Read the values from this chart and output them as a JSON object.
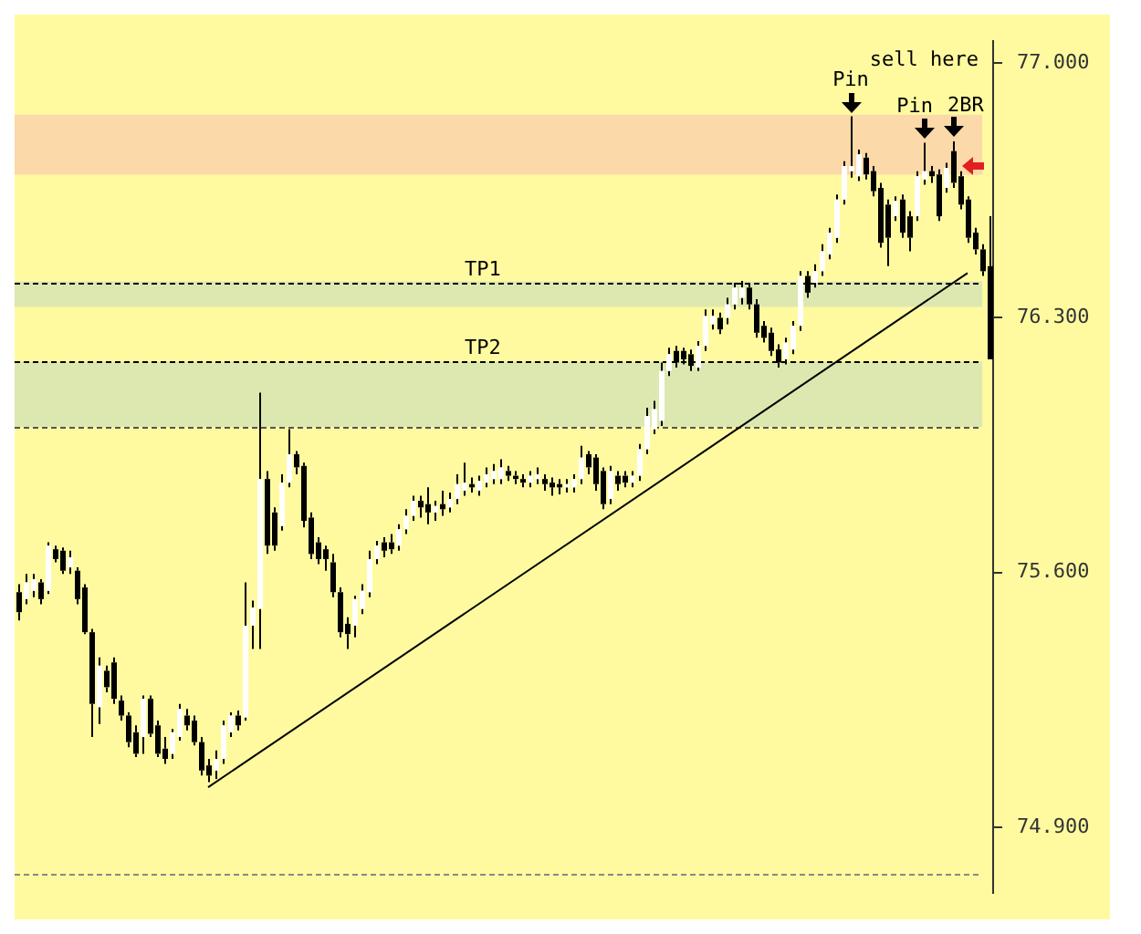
{
  "chart_data": {
    "type": "candlestick",
    "categories": [
      null,
      null,
      null,
      null,
      null,
      null,
      null,
      null,
      null,
      null,
      null,
      null,
      null,
      null,
      null,
      null,
      null,
      null,
      null,
      null,
      null,
      null,
      null,
      null,
      null,
      null,
      null,
      null,
      null,
      null,
      null,
      null,
      null,
      null,
      null,
      null,
      null,
      null,
      null,
      null,
      null,
      null,
      null,
      null,
      null,
      null,
      null,
      null,
      null,
      null,
      null,
      null,
      null,
      null,
      null,
      null,
      null,
      null,
      null,
      null,
      null,
      null,
      null,
      null,
      null,
      null,
      null,
      null,
      null,
      null,
      null,
      null,
      null,
      null,
      null,
      null,
      null,
      null,
      null,
      null,
      null,
      null,
      null,
      null,
      null,
      null,
      null,
      null,
      null,
      null,
      null,
      null,
      null,
      null,
      null,
      null,
      null,
      null,
      null,
      null,
      null,
      null,
      null,
      null,
      null,
      null,
      null,
      null,
      null,
      null,
      null,
      null,
      null,
      null,
      null,
      null,
      null,
      null,
      null,
      null,
      null,
      null,
      null,
      null,
      null,
      null,
      null,
      null,
      null,
      null,
      null,
      null,
      null,
      null
    ],
    "ohlc": [
      [
        75.546,
        75.568,
        75.468,
        75.491
      ],
      [
        75.527,
        75.596,
        75.513,
        75.573
      ],
      [
        75.55,
        75.596,
        75.532,
        75.582
      ],
      [
        75.573,
        75.582,
        75.513,
        75.527
      ],
      [
        75.55,
        75.683,
        75.541,
        75.674
      ],
      [
        75.664,
        75.674,
        75.628,
        75.637
      ],
      [
        75.66,
        75.669,
        75.596,
        75.605
      ],
      [
        75.614,
        75.66,
        75.596,
        75.642
      ],
      [
        75.605,
        75.614,
        75.513,
        75.527
      ],
      [
        75.559,
        75.568,
        75.431,
        75.436
      ],
      [
        75.436,
        75.445,
        75.148,
        75.239
      ],
      [
        75.23,
        75.367,
        75.184,
        75.344
      ],
      [
        75.33,
        75.344,
        75.271,
        75.285
      ],
      [
        75.353,
        75.367,
        75.239,
        75.253
      ],
      [
        75.248,
        75.262,
        75.193,
        75.207
      ],
      [
        75.207,
        75.216,
        75.12,
        75.134
      ],
      [
        75.161,
        75.18,
        75.093,
        75.102
      ],
      [
        75.148,
        75.262,
        75.102,
        75.253
      ],
      [
        75.253,
        75.262,
        75.148,
        75.157
      ],
      [
        75.18,
        75.193,
        75.093,
        75.102
      ],
      [
        75.116,
        75.148,
        75.074,
        75.088
      ],
      [
        75.102,
        75.17,
        75.088,
        75.161
      ],
      [
        75.148,
        75.239,
        75.138,
        75.225
      ],
      [
        75.207,
        75.225,
        75.166,
        75.18
      ],
      [
        75.193,
        75.207,
        75.125,
        75.134
      ],
      [
        75.134,
        75.148,
        75.042,
        75.056
      ],
      [
        75.07,
        75.088,
        75.024,
        75.042
      ],
      [
        75.056,
        75.111,
        75.033,
        75.088
      ],
      [
        75.088,
        75.193,
        75.074,
        75.18
      ],
      [
        75.161,
        75.216,
        75.148,
        75.207
      ],
      [
        75.207,
        75.221,
        75.166,
        75.18
      ],
      [
        75.202,
        75.573,
        75.193,
        75.454
      ],
      [
        75.454,
        75.523,
        75.39,
        75.504
      ],
      [
        75.5,
        76.094,
        75.39,
        75.857
      ],
      [
        75.857,
        75.879,
        75.651,
        75.674
      ],
      [
        75.765,
        75.779,
        75.66,
        75.674
      ],
      [
        75.728,
        75.87,
        75.715,
        75.847
      ],
      [
        75.847,
        75.994,
        75.834,
        75.925
      ],
      [
        75.925,
        75.934,
        75.87,
        75.889
      ],
      [
        75.893,
        75.902,
        75.724,
        75.742
      ],
      [
        75.751,
        75.765,
        75.637,
        75.651
      ],
      [
        75.683,
        75.697,
        75.623,
        75.637
      ],
      [
        75.664,
        75.674,
        75.605,
        75.637
      ],
      [
        75.628,
        75.651,
        75.532,
        75.546
      ],
      [
        75.546,
        75.559,
        75.422,
        75.436
      ],
      [
        75.459,
        75.477,
        75.39,
        75.431
      ],
      [
        75.454,
        75.536,
        75.422,
        75.527
      ],
      [
        75.5,
        75.568,
        75.486,
        75.55
      ],
      [
        75.546,
        75.66,
        75.532,
        75.637
      ],
      [
        75.637,
        75.687,
        75.623,
        75.674
      ],
      [
        75.683,
        75.697,
        75.642,
        75.66
      ],
      [
        75.683,
        75.706,
        75.651,
        75.664
      ],
      [
        75.674,
        75.733,
        75.66,
        75.719
      ],
      [
        75.719,
        75.774,
        75.706,
        75.756
      ],
      [
        75.756,
        75.811,
        75.742,
        75.797
      ],
      [
        75.797,
        75.811,
        75.751,
        75.779
      ],
      [
        75.788,
        75.834,
        75.733,
        75.765
      ],
      [
        75.765,
        75.797,
        75.742,
        75.783
      ],
      [
        75.788,
        75.825,
        75.756,
        75.774
      ],
      [
        75.779,
        75.82,
        75.765,
        75.802
      ],
      [
        75.802,
        75.87,
        75.788,
        75.843
      ],
      [
        75.825,
        75.902,
        75.811,
        75.847
      ],
      [
        75.843,
        75.861,
        75.82,
        75.834
      ],
      [
        75.825,
        75.866,
        75.811,
        75.852
      ],
      [
        75.847,
        75.889,
        75.834,
        75.87
      ],
      [
        75.857,
        75.898,
        75.843,
        75.879
      ],
      [
        75.857,
        75.911,
        75.843,
        75.889
      ],
      [
        75.879,
        75.893,
        75.852,
        75.866
      ],
      [
        75.866,
        75.879,
        75.843,
        75.857
      ],
      [
        75.857,
        75.87,
        75.834,
        75.847
      ],
      [
        75.847,
        75.879,
        75.834,
        75.866
      ],
      [
        75.857,
        75.889,
        75.843,
        75.87
      ],
      [
        75.857,
        75.87,
        75.825,
        75.843
      ],
      [
        75.847,
        75.861,
        75.811,
        75.834
      ],
      [
        75.843,
        75.857,
        75.815,
        75.834
      ],
      [
        75.834,
        75.857,
        75.82,
        75.843
      ],
      [
        75.834,
        75.87,
        75.82,
        75.857
      ],
      [
        75.857,
        75.948,
        75.843,
        75.916
      ],
      [
        75.925,
        75.934,
        75.87,
        75.889
      ],
      [
        75.916,
        75.925,
        75.825,
        75.843
      ],
      [
        75.879,
        75.889,
        75.774,
        75.788
      ],
      [
        75.802,
        75.893,
        75.788,
        75.879
      ],
      [
        75.866,
        75.879,
        75.825,
        75.843
      ],
      [
        75.866,
        75.879,
        75.834,
        75.847
      ],
      [
        75.847,
        75.879,
        75.834,
        75.866
      ],
      [
        75.866,
        75.953,
        75.852,
        75.939
      ],
      [
        75.939,
        76.053,
        75.925,
        76.03
      ],
      [
        75.994,
        76.072,
        75.98,
        76.049
      ],
      [
        76.017,
        76.177,
        76.003,
        76.154
      ],
      [
        76.154,
        76.218,
        76.14,
        76.2
      ],
      [
        76.209,
        76.223,
        76.163,
        76.177
      ],
      [
        76.209,
        76.218,
        76.172,
        76.186
      ],
      [
        76.2,
        76.213,
        76.154,
        76.168
      ],
      [
        76.163,
        76.236,
        76.154,
        76.223
      ],
      [
        76.223,
        76.323,
        76.209,
        76.305
      ],
      [
        76.282,
        76.323,
        76.268,
        76.305
      ],
      [
        76.3,
        76.314,
        76.255,
        76.268
      ],
      [
        76.3,
        76.355,
        76.282,
        76.337
      ],
      [
        76.337,
        76.396,
        76.323,
        76.383
      ],
      [
        76.355,
        76.401,
        76.337,
        76.383
      ],
      [
        76.383,
        76.396,
        76.323,
        76.337
      ],
      [
        76.337,
        76.351,
        76.245,
        76.259
      ],
      [
        76.278,
        76.291,
        76.232,
        76.245
      ],
      [
        76.259,
        76.273,
        76.195,
        76.209
      ],
      [
        76.213,
        76.227,
        76.163,
        76.177
      ],
      [
        76.186,
        76.245,
        76.172,
        76.232
      ],
      [
        76.213,
        76.291,
        76.2,
        76.278
      ],
      [
        76.278,
        76.428,
        76.264,
        76.415
      ],
      [
        76.415,
        76.428,
        76.355,
        76.369
      ],
      [
        76.396,
        76.447,
        76.383,
        76.428
      ],
      [
        76.428,
        76.502,
        76.415,
        76.483
      ],
      [
        76.474,
        76.547,
        76.461,
        76.534
      ],
      [
        76.52,
        76.639,
        76.506,
        76.625
      ],
      [
        76.625,
        76.73,
        76.611,
        76.717
      ],
      [
        76.703,
        76.854,
        76.685,
        76.717
      ],
      [
        76.689,
        76.762,
        76.676,
        76.749
      ],
      [
        76.74,
        76.753,
        76.68,
        76.694
      ],
      [
        76.703,
        76.717,
        76.634,
        76.648
      ],
      [
        76.657,
        76.671,
        76.493,
        76.506
      ],
      [
        76.611,
        76.625,
        76.442,
        76.52
      ],
      [
        76.579,
        76.634,
        76.566,
        76.621
      ],
      [
        76.625,
        76.639,
        76.52,
        76.534
      ],
      [
        76.579,
        76.593,
        76.483,
        76.52
      ],
      [
        76.579,
        76.703,
        76.566,
        76.689
      ],
      [
        76.68,
        76.781,
        76.666,
        76.703
      ],
      [
        76.703,
        76.717,
        76.671,
        76.689
      ],
      [
        76.694,
        76.708,
        76.566,
        76.579
      ],
      [
        76.657,
        76.726,
        76.644,
        76.712
      ],
      [
        76.758,
        76.785,
        76.657,
        76.671
      ],
      [
        76.689,
        76.703,
        76.598,
        76.611
      ],
      [
        76.625,
        76.634,
        76.506,
        76.52
      ],
      [
        76.534,
        76.547,
        76.474,
        76.488
      ],
      [
        76.488,
        76.502,
        76.415,
        76.428
      ],
      [
        76.442,
        76.579,
        76.186,
        76.186
      ]
    ],
    "series": [
      {
        "type": "line",
        "color": "#000000",
        "values": [
          null,
          null,
          null,
          null,
          null,
          null,
          null,
          null,
          null,
          null,
          null,
          null,
          null,
          null,
          null,
          null,
          null,
          null,
          null,
          null,
          null,
          null,
          null,
          null,
          null,
          null,
          75.01,
          null,
          null,
          null,
          null,
          null,
          null,
          null,
          null,
          null,
          null,
          null,
          null,
          null,
          null,
          null,
          null,
          null,
          null,
          null,
          null,
          null,
          null,
          null,
          null,
          null,
          null,
          null,
          null,
          null,
          null,
          null,
          null,
          null,
          null,
          null,
          null,
          null,
          null,
          null,
          null,
          null,
          null,
          null,
          null,
          null,
          null,
          null,
          null,
          null,
          null,
          null,
          null,
          null,
          null,
          null,
          null,
          null,
          null,
          null,
          null,
          null,
          null,
          null,
          null,
          null,
          null,
          null,
          null,
          null,
          null,
          null,
          null,
          null,
          null,
          null,
          null,
          null,
          null,
          null,
          null,
          null,
          null,
          null,
          null,
          null,
          null,
          null,
          null,
          null,
          null,
          null,
          null,
          null,
          null,
          null,
          null,
          null,
          null,
          null,
          null,
          null,
          null,
          null,
          76.423,
          null,
          null,
          null
        ]
      }
    ],
    "ylim": [
      74.72,
      77.06
    ],
    "yticks": [
      {
        "value": 74.9,
        "label": "74.900"
      },
      {
        "value": 75.6,
        "label": "75.600"
      },
      {
        "value": 76.3,
        "label": "76.300"
      },
      {
        "value": 77,
        "label": "77.000"
      }
    ],
    "tick_labels": "y",
    "bands": [
      {
        "axis": "y",
        "from": 76.693,
        "to": 76.858,
        "color": "#fcd9a8"
      },
      {
        "axis": "y",
        "from": 76.33,
        "to": 76.4,
        "color": "#dde8b0"
      },
      {
        "axis": "y",
        "from": 76.0,
        "to": 76.18,
        "color": "#dde8b0"
      }
    ],
    "ref_lines": [
      {
        "axis": "y",
        "value": 76.395,
        "label": "TP1",
        "color": "#000000",
        "line_style": "dashed"
      },
      {
        "axis": "y",
        "value": 76.18,
        "label": "TP2",
        "color": "#000000",
        "line_style": "dashed"
      },
      {
        "axis": "y",
        "value": 76.0,
        "color": "#555555",
        "line_style": "dashed"
      },
      {
        "axis": "y",
        "value": 74.77,
        "color": "#888888",
        "line_style": "dashed"
      }
    ],
    "annotations": [
      "Pin",
      "Pin",
      "2BR",
      "sell here"
    ]
  }
}
